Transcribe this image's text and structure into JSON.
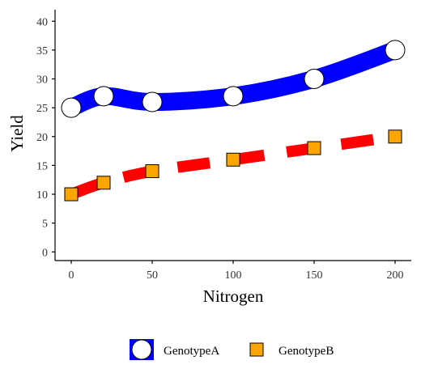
{
  "colors": {
    "genotypeA_line": "#0000ff",
    "genotypeB_line": "#ff0000",
    "genotypeA_marker": "#ffffff",
    "genotypeB_marker": "#ffa500",
    "marker_stroke": "#000000",
    "axis": "#000000",
    "text": "#333333"
  },
  "chart_data": {
    "type": "line",
    "xlabel": "Nitrogen",
    "ylabel": "Yield",
    "x": [
      0,
      20,
      50,
      100,
      150,
      200
    ],
    "xlim": [
      -10,
      210
    ],
    "ylim": [
      -1.5,
      42
    ],
    "xticks": [
      0,
      50,
      100,
      150,
      200
    ],
    "yticks": [
      0,
      5,
      10,
      15,
      20,
      25,
      30,
      35,
      40
    ],
    "grid": false,
    "legend": "bottom",
    "series": [
      {
        "name": "GenotypeA",
        "values": [
          25,
          27,
          26,
          27,
          30,
          35
        ],
        "line_style": "solid",
        "marker": "circle"
      },
      {
        "name": "GenotypeB",
        "values": [
          10,
          12,
          14,
          16,
          18,
          20
        ],
        "line_style": "dashed",
        "marker": "square"
      }
    ]
  }
}
